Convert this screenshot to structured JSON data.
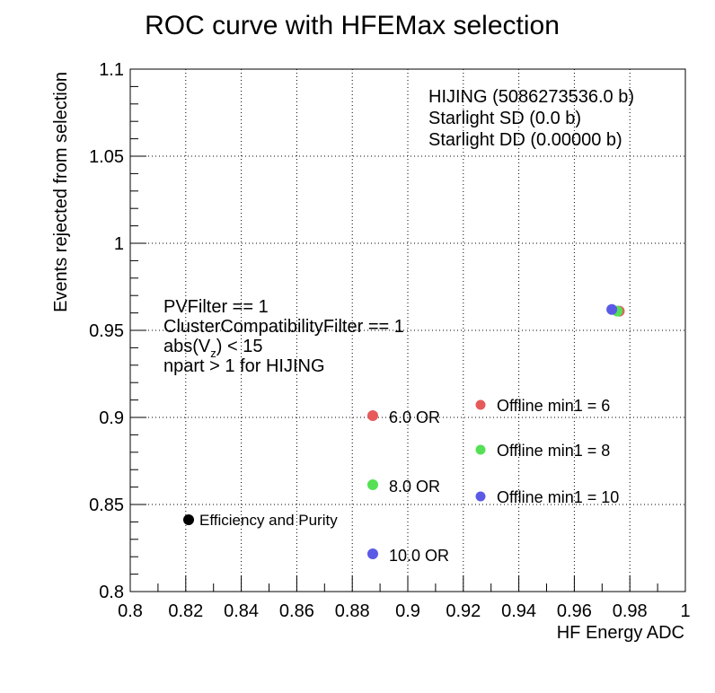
{
  "chart_data": {
    "type": "scatter",
    "title": "ROC curve with HFEMax selection",
    "xlabel": "HF Energy ADC",
    "ylabel": "Events rejected from selection",
    "xlim": [
      0.8,
      1.0
    ],
    "ylim": [
      0.8,
      1.1
    ],
    "x_ticks": [
      "0.8",
      "0.82",
      "0.84",
      "0.86",
      "0.88",
      "0.9",
      "0.92",
      "0.94",
      "0.96",
      "0.98",
      "1"
    ],
    "y_ticks": [
      "0.8",
      "0.85",
      "0.9",
      "0.95",
      "1",
      "1.05",
      "1.1"
    ],
    "grid": true,
    "legend_position": "top-right",
    "sample_legend": [
      "HIJING (5086273536.0 b)",
      "Starlight SD (0.0 b)",
      "Starlight DD (0.00000 b)"
    ],
    "selection_text": {
      "line1": "PVFilter == 1",
      "line2": "ClusterCompatibilityFilter == 1",
      "line3_pre": "abs(V",
      "line3_sub": "z",
      "line3_post": ") < 15",
      "line4": "npart > 1 for HIJING"
    },
    "series": [
      {
        "name": "Offline min1 = 6",
        "color": "#e65a5a",
        "x": [
          0.9762
        ],
        "y": [
          0.961
        ]
      },
      {
        "name": "Offline min1 = 8",
        "color": "#55e055",
        "x": [
          0.9755
        ],
        "y": [
          0.961
        ]
      },
      {
        "name": "Offline min1 = 10",
        "color": "#5a5ae6",
        "x": [
          0.9735
        ],
        "y": [
          0.962
        ]
      }
    ],
    "marker_legend": [
      {
        "label": "6.0 OR",
        "color": "#e65a5a"
      },
      {
        "label": "8.0 OR",
        "color": "#55e055"
      },
      {
        "label": "10.0 OR",
        "color": "#5a5ae6"
      },
      {
        "label": "Efficiency and Purity",
        "color": "#000000"
      }
    ]
  }
}
